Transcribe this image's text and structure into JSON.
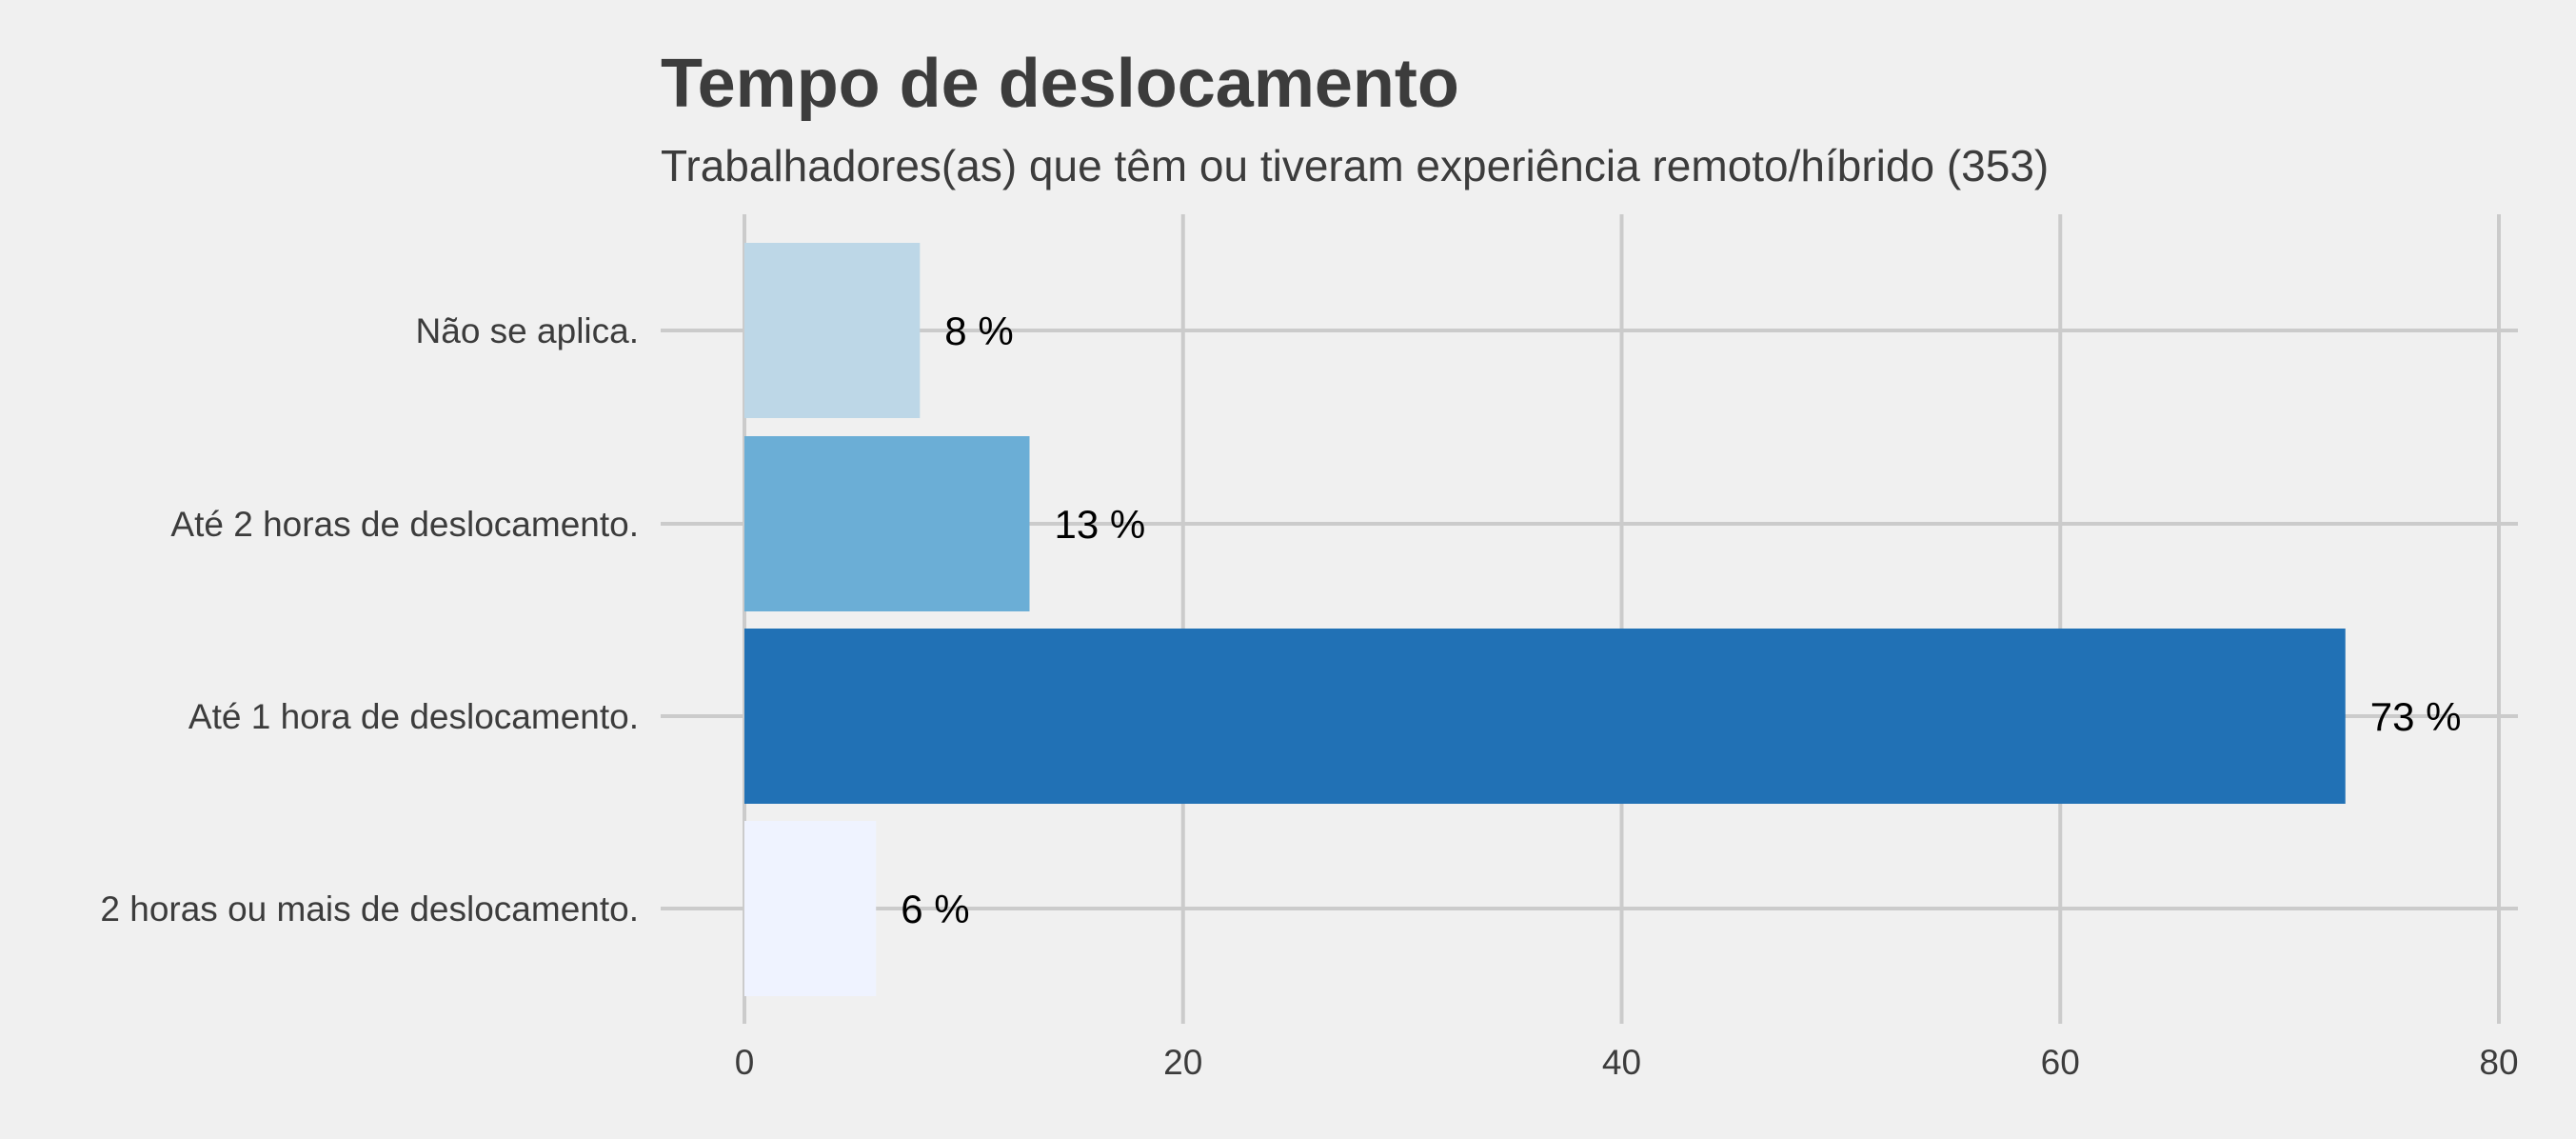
{
  "chart_data": {
    "type": "bar",
    "orientation": "horizontal",
    "title": "Tempo de deslocamento",
    "subtitle": "Trabalhadores(as) que têm ou tiveram experiência remoto/híbrido (353)",
    "categories": [
      "Não se aplica.",
      "Até 2 horas de deslocamento.",
      "Até 1 hora de deslocamento.",
      "2 horas ou mais de deslocamento."
    ],
    "values": [
      8,
      13,
      73,
      6
    ],
    "value_labels": [
      "8 %",
      "13 %",
      "73 %",
      "6 %"
    ],
    "bar_colors": [
      "#bdd7e7",
      "#6baed6",
      "#2171b5",
      "#eff3ff"
    ],
    "xlim": [
      0,
      80
    ],
    "xticks": [
      0,
      20,
      40,
      60,
      80
    ],
    "xtick_labels": [
      "0",
      "20",
      "40",
      "60",
      "80"
    ],
    "xlabel": "",
    "ylabel": "",
    "grid": true,
    "legend": "none"
  }
}
